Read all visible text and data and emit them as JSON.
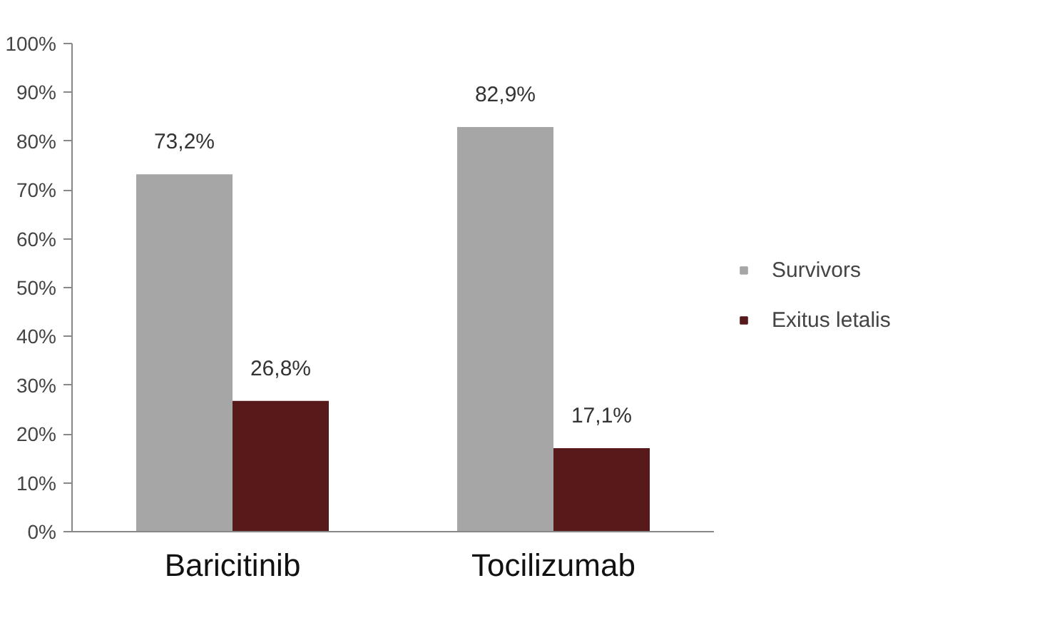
{
  "chart_data": {
    "type": "bar",
    "categories": [
      "Baricitinib",
      "Tocilizumab"
    ],
    "series": [
      {
        "name": "Survivors",
        "color": "#a6a6a6",
        "values": [
          73.2,
          82.9
        ],
        "value_labels": [
          "73,2%",
          "82,9%"
        ]
      },
      {
        "name": "Exitus letalis",
        "color": "#58191a",
        "values": [
          26.8,
          17.1
        ],
        "value_labels": [
          "26,8%",
          "17,1%"
        ]
      }
    ],
    "ylim": [
      0,
      100
    ],
    "yticks": [
      {
        "value": 0,
        "label": "0%"
      },
      {
        "value": 10,
        "label": "10%"
      },
      {
        "value": 20,
        "label": "20%"
      },
      {
        "value": 30,
        "label": "30%"
      },
      {
        "value": 40,
        "label": "40%"
      },
      {
        "value": 50,
        "label": "50%"
      },
      {
        "value": 60,
        "label": "60%"
      },
      {
        "value": 70,
        "label": "70%"
      },
      {
        "value": 80,
        "label": "80%"
      },
      {
        "value": 90,
        "label": "90%"
      },
      {
        "value": 100,
        "label": "100%"
      }
    ],
    "grid": false,
    "legend": "right"
  }
}
